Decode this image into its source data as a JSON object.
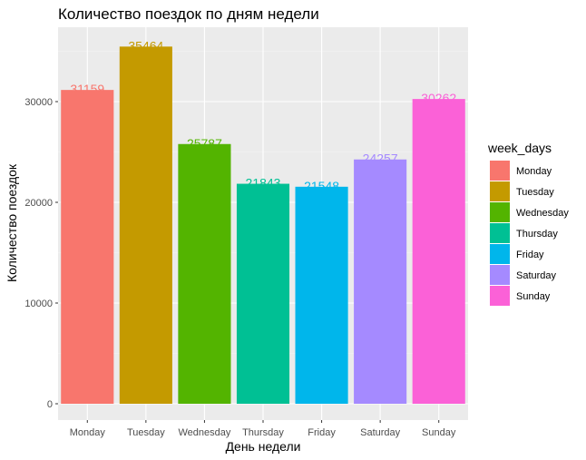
{
  "chart_data": {
    "type": "bar",
    "title": "Количество поездок по дням недели",
    "xlabel": "День недели",
    "ylabel": "Количество поездок",
    "categories": [
      "Monday",
      "Tuesday",
      "Wednesday",
      "Thursday",
      "Friday",
      "Saturday",
      "Sunday"
    ],
    "values": [
      31159,
      35464,
      25787,
      21843,
      21548,
      24257,
      30262
    ],
    "colors": [
      "#F8766D",
      "#C49A00",
      "#53B400",
      "#00C094",
      "#00B6EB",
      "#A58AFF",
      "#FB61D7"
    ],
    "ylim": [
      0,
      37500
    ],
    "yticks": [
      0,
      10000,
      20000,
      30000
    ],
    "ytick_labels": [
      "0",
      "10000",
      "20000",
      "30000"
    ],
    "grid": true,
    "background": "#EBEBEB",
    "legend": {
      "title": "week_days",
      "position": "right",
      "entries": [
        "Monday",
        "Tuesday",
        "Wednesday",
        "Thursday",
        "Friday",
        "Saturday",
        "Sunday"
      ]
    }
  }
}
